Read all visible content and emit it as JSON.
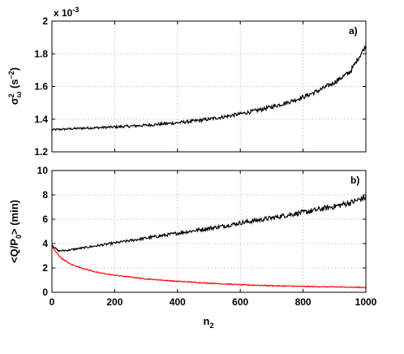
{
  "chart_data": [
    {
      "type": "line",
      "panel_label": "a)",
      "exponent_label": "x 10",
      "exponent_power": "-3",
      "ylabel": "σ²ω (s⁻²)",
      "ylabel_parts": {
        "base": "σ",
        "sup": "2",
        "sub": "ω",
        "unit_open": " (s",
        "unit_sup": "−2",
        "unit_close": ")"
      },
      "xlim": [
        0,
        1000
      ],
      "ylim": [
        1.2,
        2.0
      ],
      "yticks": [
        1.2,
        1.4,
        1.6,
        1.8,
        2.0
      ],
      "ytick_labels": [
        "1.2",
        "1.4",
        "1.6",
        "1.8",
        "2"
      ],
      "grid": true,
      "series": [
        {
          "color": "#000000",
          "x": [
            0,
            50,
            100,
            150,
            200,
            250,
            300,
            350,
            400,
            450,
            500,
            550,
            600,
            650,
            700,
            750,
            800,
            850,
            900,
            950,
            1000
          ],
          "y": [
            1.335,
            1.34,
            1.345,
            1.348,
            1.352,
            1.357,
            1.363,
            1.37,
            1.378,
            1.388,
            1.4,
            1.415,
            1.432,
            1.452,
            1.475,
            1.502,
            1.535,
            1.575,
            1.625,
            1.69,
            1.85
          ],
          "noise": 0.008
        }
      ]
    },
    {
      "type": "line",
      "panel_label": "b)",
      "xlabel": "n2",
      "xlabel_parts": {
        "base": "n",
        "sub": "2"
      },
      "ylabel": "<Q/P0> (min)",
      "ylabel_parts": {
        "pre": "<Q/P",
        "sub": "0",
        "post": "> (min)"
      },
      "xlim": [
        0,
        1000
      ],
      "ylim": [
        0,
        10
      ],
      "xticks": [
        0,
        200,
        400,
        600,
        800,
        1000
      ],
      "xtick_labels": [
        "0",
        "200",
        "400",
        "600",
        "800",
        "1000"
      ],
      "yticks": [
        0,
        2,
        4,
        6,
        8,
        10
      ],
      "ytick_labels": [
        "0",
        "2",
        "4",
        "6",
        "8",
        "10"
      ],
      "grid": true,
      "series": [
        {
          "color": "#000000",
          "x": [
            0,
            20,
            50,
            100,
            150,
            200,
            250,
            300,
            350,
            400,
            450,
            500,
            550,
            600,
            650,
            700,
            750,
            800,
            850,
            900,
            950,
            1000
          ],
          "y": [
            3.9,
            3.4,
            3.45,
            3.65,
            3.85,
            4.05,
            4.25,
            4.45,
            4.65,
            4.85,
            5.05,
            5.25,
            5.45,
            5.7,
            5.9,
            6.1,
            6.35,
            6.55,
            6.8,
            7.05,
            7.35,
            7.8
          ],
          "noise": 0.12
        },
        {
          "color": "#ff0000",
          "x": [
            0,
            10,
            30,
            60,
            100,
            150,
            200,
            300,
            400,
            500,
            600,
            700,
            800,
            900,
            1000
          ],
          "y": [
            3.8,
            3.4,
            2.8,
            2.3,
            1.95,
            1.6,
            1.4,
            1.1,
            0.9,
            0.75,
            0.62,
            0.54,
            0.48,
            0.44,
            0.4
          ],
          "noise": 0.04
        }
      ]
    }
  ]
}
